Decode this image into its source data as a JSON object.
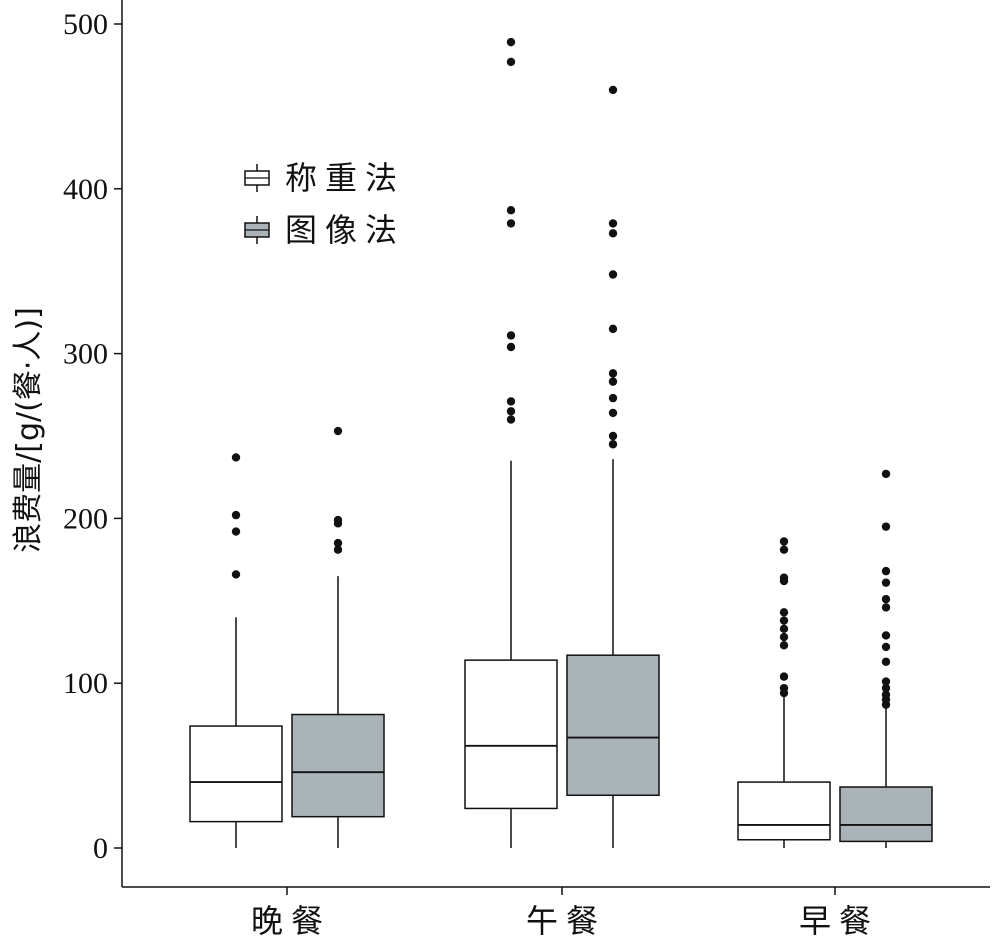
{
  "chart_data": {
    "type": "box",
    "ylabel": "浪费量/[g/(餐·人)]",
    "xlabel": "",
    "ylim": [
      0,
      500
    ],
    "yticks": [
      0,
      100,
      200,
      300,
      400,
      500
    ],
    "categories": [
      "晚餐",
      "午餐",
      "早餐"
    ],
    "legend_position": "upper-left",
    "series": [
      {
        "name": "称重法",
        "fill": "#ffffff",
        "boxes": [
          {
            "category": "晚餐",
            "min": 0,
            "q1": 16,
            "median": 40,
            "q3": 74,
            "max": 140,
            "outliers": [
              166,
              192,
              202,
              237
            ]
          },
          {
            "category": "午餐",
            "min": 0,
            "q1": 24,
            "median": 62,
            "q3": 114,
            "max": 235,
            "outliers": [
              260,
              265,
              271,
              304,
              311,
              379,
              387,
              477,
              489
            ]
          },
          {
            "category": "早餐",
            "min": 0,
            "q1": 5,
            "median": 14,
            "q3": 40,
            "max": 93,
            "outliers": [
              94,
              97,
              104,
              123,
              128,
              133,
              138,
              143,
              162,
              164,
              181,
              186
            ]
          }
        ]
      },
      {
        "name": "图像法",
        "fill": "#aab4b8",
        "boxes": [
          {
            "category": "晚餐",
            "min": 0,
            "q1": 19,
            "median": 46,
            "q3": 81,
            "max": 165,
            "outliers": [
              181,
              185,
              197,
              199,
              253
            ]
          },
          {
            "category": "午餐",
            "min": 0,
            "q1": 32,
            "median": 67,
            "q3": 117,
            "max": 236,
            "outliers": [
              245,
              250,
              264,
              273,
              283,
              288,
              315,
              348,
              373,
              379,
              460
            ]
          },
          {
            "category": "早餐",
            "min": 0,
            "q1": 4,
            "median": 14,
            "q3": 37,
            "max": 85,
            "outliers": [
              87,
              90,
              93,
              97,
              101,
              113,
              122,
              129,
              146,
              151,
              161,
              168,
              195,
              227
            ]
          }
        ]
      }
    ]
  }
}
